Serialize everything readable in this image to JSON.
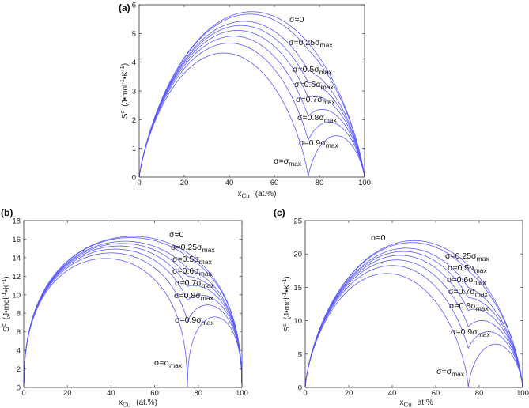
{
  "chart_data": [
    {
      "type": "line",
      "panel_label": "(a)",
      "xlabel": {
        "main": "x",
        "sub": "Cu",
        "unit": "(at.%)"
      },
      "ylabel": {
        "main": "S",
        "sup": "c",
        "unit_parts": [
          "(J•mol",
          "-1",
          "•K",
          "-1",
          ")"
        ]
      },
      "xlim": [
        0,
        100
      ],
      "ylim": [
        0,
        6
      ],
      "xticks": [
        0,
        20,
        40,
        60,
        80,
        100
      ],
      "yticks": [
        0,
        1,
        2,
        3,
        4,
        5,
        6
      ],
      "grid": false,
      "peak_sigma0": 5.76,
      "series": [
        {
          "label": "σ=0",
          "sub": "",
          "sigma_fraction": 0,
          "peak": 5.76
        },
        {
          "label": "σ=0.25σ",
          "sub": "max",
          "sigma_fraction": 0.25,
          "peak": 5.67
        },
        {
          "label": "σ=0.5σ",
          "sub": "max",
          "sigma_fraction": 0.5,
          "peak": 5.42
        },
        {
          "label": "σ=0.6σ",
          "sub": "max",
          "sigma_fraction": 0.6,
          "peak": 5.27
        },
        {
          "label": "σ=0.7σ",
          "sub": "max",
          "sigma_fraction": 0.7,
          "peak": 5.1
        },
        {
          "label": "σ=0.8σ",
          "sub": "max",
          "sigma_fraction": 0.8,
          "peak": 4.9
        },
        {
          "label": "σ=0.9σ",
          "sub": "max",
          "sigma_fraction": 0.9,
          "peak": 4.65
        },
        {
          "label": "σ=σ",
          "sub": "max",
          "sigma_fraction": 1,
          "peak": 4.32
        }
      ]
    },
    {
      "type": "line",
      "panel_label": "(b)",
      "xlabel": {
        "main": "x",
        "sub": "Cu",
        "unit": "(at.%)"
      },
      "ylabel": {
        "main": "S",
        "sup": "c",
        "unit_parts": [
          "(J•mol",
          "-1",
          "•K",
          "-1",
          ")"
        ]
      },
      "xlim": [
        0,
        100
      ],
      "ylim": [
        0,
        18
      ],
      "xticks": [
        0,
        20,
        40,
        60,
        80,
        100
      ],
      "yticks": [
        0,
        2,
        4,
        6,
        8,
        10,
        12,
        14,
        16,
        18
      ],
      "grid": false,
      "peak_sigma0": 16.3,
      "series": [
        {
          "label": "σ=0",
          "sub": "",
          "sigma_fraction": 0,
          "peak": 16.3
        },
        {
          "label": "σ=0.25σ",
          "sub": "max",
          "sigma_fraction": 0.25,
          "peak": 16.1
        },
        {
          "label": "σ=0.5σ",
          "sub": "max",
          "sigma_fraction": 0.5,
          "peak": 15.9
        },
        {
          "label": "σ=0.6σ",
          "sub": "max",
          "sigma_fraction": 0.6,
          "peak": 15.7
        },
        {
          "label": "σ=0.7σ",
          "sub": "max",
          "sigma_fraction": 0.7,
          "peak": 15.5
        },
        {
          "label": "σ=0.8σ",
          "sub": "max",
          "sigma_fraction": 0.8,
          "peak": 15.3
        },
        {
          "label": "σ=0.9σ",
          "sub": "max",
          "sigma_fraction": 0.9,
          "peak": 15.1
        },
        {
          "label": "σ=σ",
          "sub": "max",
          "sigma_fraction": 1,
          "peak": 15.0
        }
      ]
    },
    {
      "type": "line",
      "panel_label": "(c)",
      "xlabel": {
        "main": "x",
        "sub": "Cu",
        "unit": "at.%"
      },
      "ylabel": {
        "main": "S",
        "sup": "c",
        "unit_parts": [
          "(J•mol",
          "-1",
          "•K",
          "-1",
          ")"
        ]
      },
      "xlim": [
        0,
        100
      ],
      "ylim": [
        0,
        25
      ],
      "xticks": [
        0,
        20,
        40,
        60,
        80,
        100
      ],
      "yticks": [
        0,
        5,
        10,
        15,
        20,
        25
      ],
      "grid": false,
      "peak_sigma0": 22.0,
      "series": [
        {
          "label": "σ=0",
          "sub": "",
          "sigma_fraction": 0,
          "peak": 22.0
        },
        {
          "label": "σ=0.25σ",
          "sub": "max",
          "sigma_fraction": 0.25,
          "peak": 21.8
        },
        {
          "label": "σ=0.5σ",
          "sub": "max",
          "sigma_fraction": 0.5,
          "peak": 21.3
        },
        {
          "label": "σ=0.6σ",
          "sub": "max",
          "sigma_fraction": 0.6,
          "peak": 21.0
        },
        {
          "label": "σ=0.7σ",
          "sub": "max",
          "sigma_fraction": 0.7,
          "peak": 20.5
        },
        {
          "label": "σ=0.8σ",
          "sub": "max",
          "sigma_fraction": 0.8,
          "peak": 20.0
        },
        {
          "label": "σ=0.9σ",
          "sub": "max",
          "sigma_fraction": 0.9,
          "peak": 19.8
        },
        {
          "label": "σ=σ",
          "sub": "max",
          "sigma_fraction": 1,
          "peak": 19.4
        }
      ]
    }
  ]
}
